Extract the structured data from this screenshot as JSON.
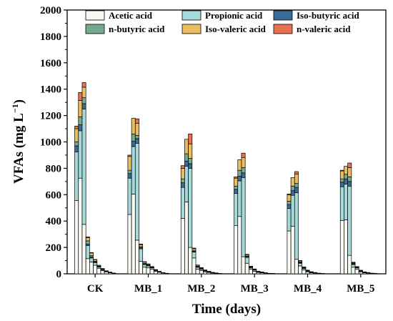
{
  "chart_data": {
    "type": "bar",
    "stacked": true,
    "ylabel": "VFAs (mg L",
    "ylabel_sup": "−1",
    "ylabel_close": ")",
    "xlabel": "Time (days)",
    "ylim": [
      0,
      2000
    ],
    "yticks": [
      0,
      200,
      400,
      600,
      800,
      1000,
      1200,
      1400,
      1600,
      1800,
      2000
    ],
    "groups": [
      "CK",
      "MB_1",
      "MB_2",
      "MB_3",
      "MB_4",
      "MB_5"
    ],
    "bars_per_group": 11,
    "legend_placement": "top, inside plot area, 3 columns",
    "series": [
      {
        "name": "Acetic acid",
        "color": "#f7f9f2",
        "values": [
          [
            555,
            725,
            375,
            115,
            90,
            65,
            42,
            25,
            15,
            8,
            4
          ],
          [
            450,
            605,
            255,
            95,
            50,
            45,
            35,
            20,
            12,
            6,
            3
          ],
          [
            420,
            545,
            200,
            120,
            35,
            25,
            15,
            10,
            6,
            4,
            2
          ],
          [
            365,
            435,
            130,
            80,
            35,
            20,
            10,
            8,
            5,
            3,
            2
          ],
          [
            325,
            360,
            110,
            60,
            30,
            15,
            8,
            5,
            3,
            2,
            1
          ],
          [
            405,
            410,
            140,
            50,
            35,
            15,
            8,
            5,
            3,
            2,
            1
          ]
        ]
      },
      {
        "name": "Propionic acid",
        "color": "#a6d9d9",
        "values": [
          [
            370,
            360,
            875,
            100,
            30,
            20,
            10,
            6,
            4,
            2,
            1
          ],
          [
            275,
            360,
            735,
            95,
            20,
            15,
            10,
            5,
            3,
            2,
            1
          ],
          [
            235,
            270,
            600,
            45,
            15,
            10,
            6,
            4,
            3,
            2,
            1
          ],
          [
            245,
            270,
            600,
            45,
            10,
            8,
            5,
            3,
            2,
            1,
            1
          ],
          [
            170,
            235,
            505,
            20,
            10,
            5,
            3,
            2,
            1,
            1,
            0
          ],
          [
            255,
            270,
            525,
            20,
            10,
            5,
            3,
            2,
            1,
            1,
            0
          ]
        ]
      },
      {
        "name": "Iso-butyric acid",
        "color": "#3a6c97",
        "values": [
          [
            45,
            45,
            40,
            10,
            8,
            5,
            3,
            2,
            1,
            1,
            0
          ],
          [
            35,
            40,
            35,
            8,
            5,
            4,
            3,
            2,
            1,
            0,
            0
          ],
          [
            35,
            40,
            35,
            5,
            4,
            3,
            2,
            1,
            1,
            0,
            0
          ],
          [
            30,
            35,
            35,
            5,
            3,
            2,
            1,
            1,
            0,
            0,
            0
          ],
          [
            30,
            35,
            40,
            5,
            3,
            2,
            1,
            1,
            0,
            0,
            0
          ],
          [
            35,
            40,
            35,
            5,
            3,
            2,
            1,
            1,
            0,
            0,
            0
          ]
        ]
      },
      {
        "name": "n-butyric acid",
        "color": "#74aa8f",
        "values": [
          [
            30,
            60,
            45,
            25,
            10,
            5,
            3,
            2,
            1,
            1,
            0
          ],
          [
            25,
            55,
            25,
            8,
            5,
            3,
            2,
            1,
            1,
            0,
            0
          ],
          [
            30,
            55,
            40,
            5,
            3,
            2,
            2,
            1,
            0,
            0,
            0
          ],
          [
            25,
            45,
            40,
            5,
            3,
            2,
            1,
            1,
            0,
            0,
            0
          ],
          [
            25,
            35,
            30,
            5,
            2,
            2,
            1,
            1,
            0,
            0,
            0
          ],
          [
            25,
            35,
            35,
            5,
            2,
            2,
            1,
            1,
            0,
            0,
            0
          ]
        ]
      },
      {
        "name": "Iso-valeric acid",
        "color": "#ebbd61",
        "values": [
          [
            100,
            125,
            80,
            25,
            20,
            12,
            6,
            4,
            2,
            1,
            1
          ],
          [
            105,
            120,
            90,
            15,
            10,
            6,
            4,
            3,
            2,
            1,
            0
          ],
          [
            80,
            110,
            110,
            15,
            8,
            5,
            3,
            2,
            1,
            1,
            0
          ],
          [
            60,
            80,
            75,
            10,
            5,
            3,
            2,
            1,
            1,
            0,
            0
          ],
          [
            50,
            65,
            70,
            8,
            5,
            3,
            2,
            1,
            1,
            0,
            0
          ],
          [
            60,
            60,
            70,
            5,
            3,
            2,
            1,
            1,
            1,
            0,
            0
          ]
        ]
      },
      {
        "name": "n-valeric acid",
        "color": "#e8714f",
        "values": [
          [
            20,
            60,
            35,
            5,
            3,
            2,
            1,
            1,
            0,
            0,
            0
          ],
          [
            10,
            0,
            35,
            5,
            2,
            2,
            1,
            1,
            0,
            0,
            0
          ],
          [
            20,
            0,
            75,
            5,
            2,
            2,
            1,
            1,
            0,
            0,
            0
          ],
          [
            10,
            0,
            35,
            3,
            2,
            2,
            1,
            0,
            0,
            0,
            0
          ],
          [
            5,
            0,
            20,
            3,
            2,
            1,
            1,
            0,
            0,
            0,
            0
          ],
          [
            5,
            0,
            35,
            3,
            2,
            1,
            1,
            0,
            0,
            0,
            0
          ]
        ]
      }
    ]
  }
}
